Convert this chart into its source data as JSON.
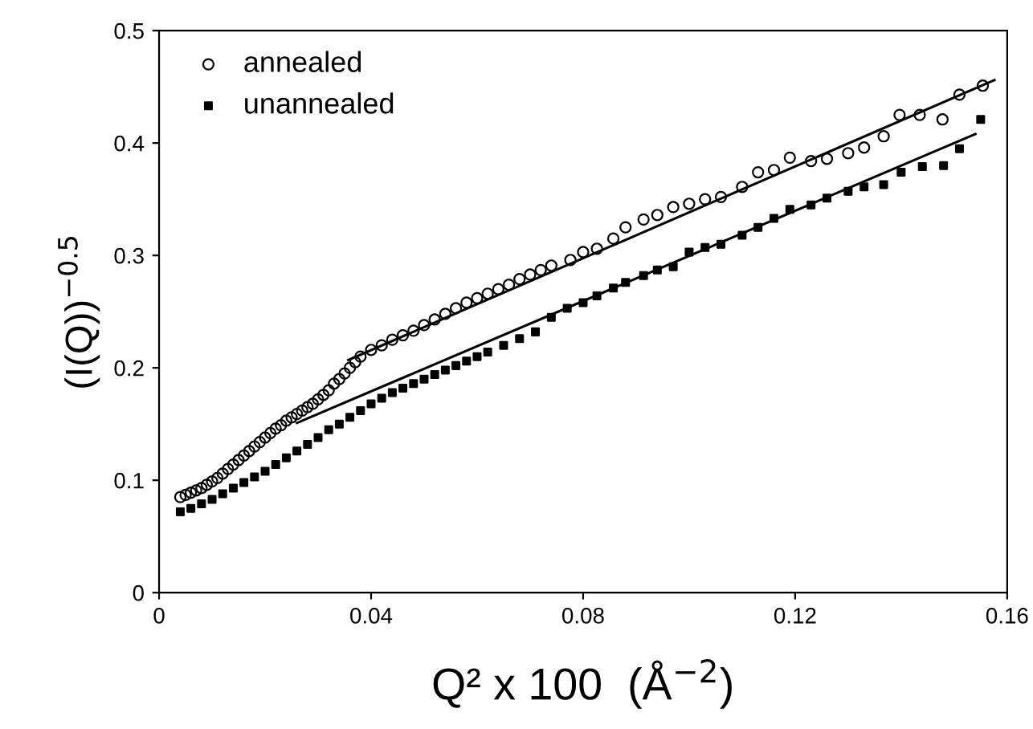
{
  "chart_data": {
    "type": "scatter",
    "xlabel": "Q² x 100  (Å$^{−2}$)",
    "ylabel": "(I(Q))$^{−0.5}$",
    "xlim": [
      0,
      0.16
    ],
    "xticks": [
      0,
      0.04,
      0.08,
      0.12,
      0.16
    ],
    "ylim": [
      0,
      0.5
    ],
    "yticks": [
      0,
      0.1,
      0.2,
      0.3,
      0.4,
      0.5
    ],
    "grid": false,
    "legend": "top left",
    "series": [
      {
        "name": "annealed",
        "color": "#000000",
        "marker": "circle",
        "x": [
          0.004,
          0.005,
          0.006,
          0.007,
          0.008,
          0.009,
          0.01,
          0.011,
          0.012,
          0.013,
          0.014,
          0.015,
          0.016,
          0.017,
          0.018,
          0.019,
          0.02,
          0.021,
          0.022,
          0.023,
          0.024,
          0.025,
          0.026,
          0.027,
          0.028,
          0.029,
          0.03,
          0.031,
          0.032,
          0.033,
          0.034,
          0.035,
          0.036,
          0.037,
          0.038,
          0.04,
          0.042,
          0.044,
          0.046,
          0.048,
          0.05,
          0.052,
          0.054,
          0.056,
          0.058,
          0.06,
          0.062,
          0.064,
          0.066,
          0.068,
          0.07,
          0.072,
          0.074,
          0.0776,
          0.08,
          0.0826,
          0.0857,
          0.088,
          0.0914,
          0.094,
          0.097,
          0.1,
          0.103,
          0.106,
          0.11,
          0.113,
          0.116,
          0.119,
          0.123,
          0.126,
          0.13,
          0.133,
          0.1367,
          0.1397,
          0.1435,
          0.1478,
          0.151,
          0.1554
        ],
        "values": [
          0.085,
          0.087,
          0.089,
          0.091,
          0.093,
          0.096,
          0.099,
          0.102,
          0.106,
          0.11,
          0.114,
          0.118,
          0.122,
          0.126,
          0.13,
          0.134,
          0.138,
          0.142,
          0.146,
          0.149,
          0.153,
          0.156,
          0.159,
          0.162,
          0.165,
          0.168,
          0.172,
          0.176,
          0.18,
          0.186,
          0.19,
          0.195,
          0.2,
          0.205,
          0.21,
          0.216,
          0.22,
          0.225,
          0.229,
          0.233,
          0.238,
          0.243,
          0.248,
          0.253,
          0.258,
          0.262,
          0.266,
          0.27,
          0.274,
          0.279,
          0.283,
          0.287,
          0.291,
          0.296,
          0.303,
          0.306,
          0.315,
          0.325,
          0.332,
          0.336,
          0.343,
          0.346,
          0.35,
          0.352,
          0.361,
          0.374,
          0.376,
          0.387,
          0.384,
          0.386,
          0.391,
          0.396,
          0.406,
          0.425,
          0.425,
          0.421,
          0.443,
          0.451
        ]
      },
      {
        "name": "unannealed",
        "color": "#000000",
        "marker": "square",
        "x": [
          0.004,
          0.006,
          0.008,
          0.01,
          0.012,
          0.014,
          0.016,
          0.018,
          0.02,
          0.022,
          0.024,
          0.026,
          0.028,
          0.03,
          0.032,
          0.034,
          0.036,
          0.038,
          0.04,
          0.042,
          0.044,
          0.046,
          0.048,
          0.05,
          0.052,
          0.054,
          0.056,
          0.058,
          0.06,
          0.062,
          0.065,
          0.068,
          0.071,
          0.074,
          0.077,
          0.08,
          0.0826,
          0.0857,
          0.088,
          0.0914,
          0.094,
          0.097,
          0.1,
          0.103,
          0.106,
          0.11,
          0.113,
          0.116,
          0.119,
          0.123,
          0.126,
          0.13,
          0.133,
          0.1367,
          0.14,
          0.144,
          0.148,
          0.151,
          0.155
        ],
        "values": [
          0.072,
          0.075,
          0.079,
          0.083,
          0.088,
          0.093,
          0.098,
          0.103,
          0.108,
          0.114,
          0.12,
          0.126,
          0.132,
          0.138,
          0.145,
          0.15,
          0.156,
          0.162,
          0.168,
          0.173,
          0.178,
          0.182,
          0.186,
          0.19,
          0.194,
          0.198,
          0.202,
          0.206,
          0.21,
          0.214,
          0.22,
          0.226,
          0.232,
          0.245,
          0.253,
          0.258,
          0.264,
          0.271,
          0.276,
          0.282,
          0.287,
          0.29,
          0.303,
          0.307,
          0.31,
          0.318,
          0.325,
          0.333,
          0.341,
          0.345,
          0.351,
          0.357,
          0.361,
          0.363,
          0.374,
          0.379,
          0.38,
          0.395,
          0.421
        ]
      },
      {
        "type": "line",
        "color": "#000000",
        "x": [
          0.0357,
          0.1576
        ],
        "values": [
          0.207,
          0.456
        ]
      },
      {
        "type": "line",
        "color": "#000000",
        "x": [
          0.026,
          0.154
        ],
        "values": [
          0.151,
          0.408
        ]
      }
    ]
  }
}
